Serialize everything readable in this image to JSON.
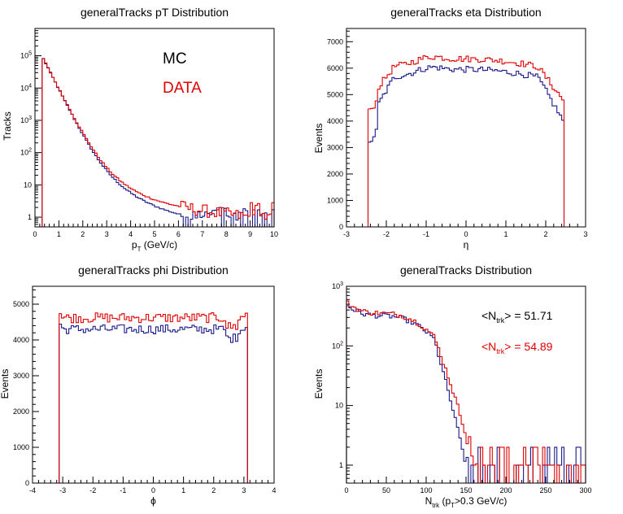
{
  "colors": {
    "mc": "#1a1a8c",
    "data": "#e00000",
    "frame": "#000000"
  },
  "legend": {
    "mc": "MC",
    "data": "DATA"
  },
  "chart_data": [
    {
      "id": "pt",
      "type": "line",
      "title": "generalTracks pT Distribution",
      "ylabel": "Tracks",
      "xlabel": {
        "main": "p",
        "sub": "T",
        "rest": " (GeV/c)"
      },
      "log": true,
      "xlim": [
        0,
        10
      ],
      "ylim": [
        0.5,
        700000
      ],
      "xticks": [
        0,
        1,
        2,
        3,
        4,
        5,
        6,
        7,
        8,
        9,
        10
      ],
      "yticks": [
        {
          "v": 1,
          "l": "1"
        },
        {
          "v": 10,
          "l": "10"
        },
        {
          "v": 100,
          "b": "10",
          "e": "2"
        },
        {
          "v": 1000,
          "b": "10",
          "e": "3"
        },
        {
          "v": 10000,
          "b": "10",
          "e": "4"
        },
        {
          "v": 100000,
          "b": "10",
          "e": "5"
        }
      ],
      "curve": "pt",
      "series": [
        {
          "name": "MC",
          "key": "mc"
        },
        {
          "name": "DATA",
          "key": "data"
        }
      ]
    },
    {
      "id": "eta",
      "type": "line",
      "title": "generalTracks eta Distribution",
      "ylabel": "Events",
      "xlabel": {
        "main": "η",
        "sub": "",
        "rest": ""
      },
      "log": false,
      "xlim": [
        -3,
        3
      ],
      "ylim": [
        0,
        7500
      ],
      "xticks": [
        -3,
        -2,
        -1,
        0,
        1,
        2,
        3
      ],
      "yticks": [
        {
          "v": 0,
          "l": "0"
        },
        {
          "v": 1000,
          "l": "1000"
        },
        {
          "v": 2000,
          "l": "2000"
        },
        {
          "v": 3000,
          "l": "3000"
        },
        {
          "v": 4000,
          "l": "4000"
        },
        {
          "v": 5000,
          "l": "5000"
        },
        {
          "v": 6000,
          "l": "6000"
        },
        {
          "v": 7000,
          "l": "7000"
        }
      ],
      "curve": "eta",
      "series": [
        {
          "name": "MC",
          "key": "mc"
        },
        {
          "name": "DATA",
          "key": "data"
        }
      ]
    },
    {
      "id": "phi",
      "type": "line",
      "title": "generalTracks phi Distribution",
      "ylabel": "Events",
      "xlabel": {
        "main": "ϕ",
        "sub": "",
        "rest": ""
      },
      "log": false,
      "xlim": [
        -4,
        4
      ],
      "ylim": [
        0,
        5500
      ],
      "xticks": [
        -4,
        -3,
        -2,
        -1,
        0,
        1,
        2,
        3,
        4
      ],
      "yticks": [
        {
          "v": 0,
          "l": "0"
        },
        {
          "v": 1000,
          "l": "1000"
        },
        {
          "v": 2000,
          "l": "2000"
        },
        {
          "v": 3000,
          "l": "3000"
        },
        {
          "v": 4000,
          "l": "4000"
        },
        {
          "v": 5000,
          "l": "5000"
        }
      ],
      "curve": "phi",
      "series": [
        {
          "name": "MC",
          "key": "mc"
        },
        {
          "name": "DATA",
          "key": "data"
        }
      ]
    },
    {
      "id": "ntrk",
      "type": "line",
      "title": "generalTracks Distribution",
      "ylabel": "Events",
      "xlabel": {
        "main": "N",
        "sub": "trk",
        "rest": " (p",
        "sub2": "T",
        "rest2": ">0.3 GeV/c)"
      },
      "log": true,
      "xlim": [
        0,
        300
      ],
      "ylim": [
        0.5,
        1000
      ],
      "xticks": [
        0,
        50,
        100,
        150,
        200,
        250,
        300
      ],
      "yticks": [
        {
          "v": 1,
          "l": "1"
        },
        {
          "v": 10,
          "l": "10"
        },
        {
          "v": 100,
          "b": "10",
          "e": "2"
        },
        {
          "v": 1000,
          "b": "10",
          "e": "3"
        }
      ],
      "curve": "ntrk",
      "annotations": [
        {
          "key": "mc",
          "pre": "<N",
          "sub": "trk",
          "post": "> = 51.71"
        },
        {
          "key": "data",
          "pre": "<N",
          "sub": "trk",
          "post": "> = 54.89"
        }
      ],
      "series": [
        {
          "name": "MC",
          "key": "mc"
        },
        {
          "name": "DATA",
          "key": "data"
        }
      ]
    }
  ]
}
